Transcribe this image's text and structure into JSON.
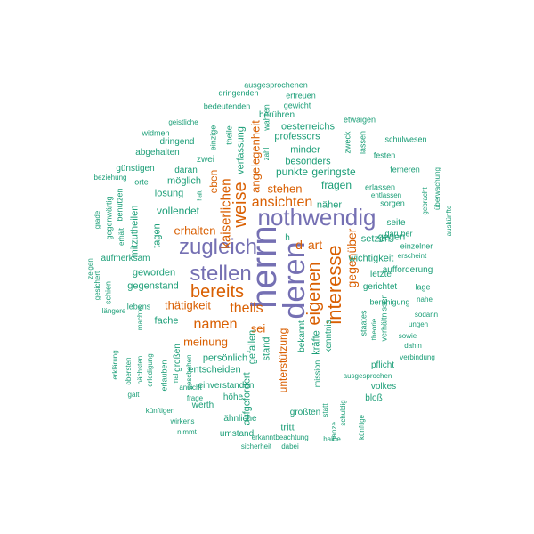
{
  "palette": {
    "teal": "#1b9e77",
    "orange": "#d95f02",
    "purple": "#7570b3"
  },
  "words": [
    {
      "text": "herrn",
      "color": "purple"
    },
    {
      "text": "deren",
      "color": "purple"
    },
    {
      "text": "nothwendig",
      "color": "purple"
    },
    {
      "text": "zugleich",
      "color": "purple"
    },
    {
      "text": "stellen",
      "color": "purple"
    },
    {
      "text": "interesse",
      "color": "orange"
    },
    {
      "text": "eigenen",
      "color": "orange"
    },
    {
      "text": "bereits",
      "color": "orange"
    },
    {
      "text": "weise",
      "color": "orange"
    },
    {
      "text": "kaiserlichen",
      "color": "orange"
    },
    {
      "text": "ansichten",
      "color": "orange"
    },
    {
      "text": "theils",
      "color": "orange"
    },
    {
      "text": "namen",
      "color": "orange"
    },
    {
      "text": "gegenüber",
      "color": "orange"
    },
    {
      "text": "d",
      "color": "orange"
    },
    {
      "text": "art",
      "color": "orange"
    },
    {
      "text": "stehen",
      "color": "orange"
    },
    {
      "text": "erhalten",
      "color": "orange"
    },
    {
      "text": "thätigkeit",
      "color": "orange"
    },
    {
      "text": "sei",
      "color": "orange"
    },
    {
      "text": "meinung",
      "color": "orange"
    },
    {
      "text": "angelegenheit",
      "color": "orange"
    },
    {
      "text": "eben",
      "color": "orange"
    },
    {
      "text": "unterstützung",
      "color": "orange"
    },
    {
      "text": "ausgesprochenen",
      "color": "teal"
    },
    {
      "text": "dringenden",
      "color": "teal"
    },
    {
      "text": "erfreuen",
      "color": "teal"
    },
    {
      "text": "bedeutenden",
      "color": "teal"
    },
    {
      "text": "gewicht",
      "color": "teal"
    },
    {
      "text": "wahren",
      "color": "teal"
    },
    {
      "text": "berühren",
      "color": "teal"
    },
    {
      "text": "etwaigen",
      "color": "teal"
    },
    {
      "text": "geistliche",
      "color": "teal"
    },
    {
      "text": "oesterreichs",
      "color": "teal"
    },
    {
      "text": "widmen",
      "color": "teal"
    },
    {
      "text": "theile",
      "color": "teal"
    },
    {
      "text": "einzige",
      "color": "teal"
    },
    {
      "text": "professors",
      "color": "teal"
    },
    {
      "text": "zweck",
      "color": "teal"
    },
    {
      "text": "lassen",
      "color": "teal"
    },
    {
      "text": "festen",
      "color": "teal"
    },
    {
      "text": "dringend",
      "color": "teal"
    },
    {
      "text": "verfassung",
      "color": "teal"
    },
    {
      "text": "zahl",
      "color": "teal"
    },
    {
      "text": "minder",
      "color": "teal"
    },
    {
      "text": "schulwesen",
      "color": "teal"
    },
    {
      "text": "abgehalten",
      "color": "teal"
    },
    {
      "text": "zwei",
      "color": "teal"
    },
    {
      "text": "besonders",
      "color": "teal"
    },
    {
      "text": "ferneren",
      "color": "teal"
    },
    {
      "text": "günstigen",
      "color": "teal"
    },
    {
      "text": "daran",
      "color": "teal"
    },
    {
      "text": "punkte",
      "color": "teal"
    },
    {
      "text": "geringste",
      "color": "teal"
    },
    {
      "text": "beziehung",
      "color": "teal"
    },
    {
      "text": "orte",
      "color": "teal"
    },
    {
      "text": "möglich",
      "color": "teal"
    },
    {
      "text": "überwachung",
      "color": "teal"
    },
    {
      "text": "gebracht",
      "color": "teal"
    },
    {
      "text": "halt",
      "color": "teal"
    },
    {
      "text": "fragen",
      "color": "teal"
    },
    {
      "text": "erlassen",
      "color": "teal"
    },
    {
      "text": "lösung",
      "color": "teal"
    },
    {
      "text": "entlassen",
      "color": "teal"
    },
    {
      "text": "benutzen",
      "color": "teal"
    },
    {
      "text": "sorgen",
      "color": "teal"
    },
    {
      "text": "grade",
      "color": "teal"
    },
    {
      "text": "näher",
      "color": "teal"
    },
    {
      "text": "vollendet",
      "color": "teal"
    },
    {
      "text": "gegenwärtig",
      "color": "teal"
    },
    {
      "text": "mitzutheilen",
      "color": "teal"
    },
    {
      "text": "seite",
      "color": "teal"
    },
    {
      "text": "auskünfte",
      "color": "teal"
    },
    {
      "text": "gegen",
      "color": "teal"
    },
    {
      "text": "darüber",
      "color": "teal"
    },
    {
      "text": "erhält",
      "color": "teal"
    },
    {
      "text": "h",
      "color": "teal"
    },
    {
      "text": "setzen",
      "color": "teal"
    },
    {
      "text": "tagen",
      "color": "teal"
    },
    {
      "text": "einzelner",
      "color": "teal"
    },
    {
      "text": "aufmerksam",
      "color": "teal"
    },
    {
      "text": "wichtigkeit",
      "color": "teal"
    },
    {
      "text": "erscheint",
      "color": "teal"
    },
    {
      "text": "zeigen",
      "color": "teal"
    },
    {
      "text": "geworden",
      "color": "teal"
    },
    {
      "text": "letzte",
      "color": "teal"
    },
    {
      "text": "aufforderung",
      "color": "teal"
    },
    {
      "text": "gesichert",
      "color": "teal"
    },
    {
      "text": "schien",
      "color": "teal"
    },
    {
      "text": "gegenstand",
      "color": "teal"
    },
    {
      "text": "gerichtet",
      "color": "teal"
    },
    {
      "text": "lage",
      "color": "teal"
    },
    {
      "text": "beruhigung",
      "color": "teal"
    },
    {
      "text": "lebens",
      "color": "teal"
    },
    {
      "text": "nahe",
      "color": "teal"
    },
    {
      "text": "sodann",
      "color": "teal"
    },
    {
      "text": "längere",
      "color": "teal"
    },
    {
      "text": "machte",
      "color": "teal"
    },
    {
      "text": "fache",
      "color": "teal"
    },
    {
      "text": "staates",
      "color": "teal"
    },
    {
      "text": "verhältnissen",
      "color": "teal"
    },
    {
      "text": "ungen",
      "color": "teal"
    },
    {
      "text": "theorie",
      "color": "teal"
    },
    {
      "text": "sowie",
      "color": "teal"
    },
    {
      "text": "kräfte",
      "color": "teal"
    },
    {
      "text": "bekannt",
      "color": "teal"
    },
    {
      "text": "kenntnis",
      "color": "teal"
    },
    {
      "text": "dahin",
      "color": "teal"
    },
    {
      "text": "gefallen",
      "color": "teal"
    },
    {
      "text": "stand",
      "color": "teal"
    },
    {
      "text": "verbindung",
      "color": "teal"
    },
    {
      "text": "persönlich",
      "color": "teal"
    },
    {
      "text": "größen",
      "color": "teal"
    },
    {
      "text": "pflicht",
      "color": "teal"
    },
    {
      "text": "entscheiden",
      "color": "teal"
    },
    {
      "text": "erklärung",
      "color": "teal"
    },
    {
      "text": "obersten",
      "color": "teal"
    },
    {
      "text": "nächsten",
      "color": "teal"
    },
    {
      "text": "erledigung",
      "color": "teal"
    },
    {
      "text": "erlauben",
      "color": "teal"
    },
    {
      "text": "geschehen",
      "color": "teal"
    },
    {
      "text": "mal",
      "color": "teal"
    },
    {
      "text": "mission",
      "color": "teal"
    },
    {
      "text": "ausgesprochen",
      "color": "teal"
    },
    {
      "text": "volkes",
      "color": "teal"
    },
    {
      "text": "einverstanden",
      "color": "teal"
    },
    {
      "text": "ansicht",
      "color": "teal"
    },
    {
      "text": "galt",
      "color": "teal"
    },
    {
      "text": "aufgefordert",
      "color": "teal"
    },
    {
      "text": "frage",
      "color": "teal"
    },
    {
      "text": "höhe",
      "color": "teal"
    },
    {
      "text": "werth",
      "color": "teal"
    },
    {
      "text": "schuldig",
      "color": "teal"
    },
    {
      "text": "statt",
      "color": "teal"
    },
    {
      "text": "bloß",
      "color": "teal"
    },
    {
      "text": "künftigen",
      "color": "teal"
    },
    {
      "text": "wirkens",
      "color": "teal"
    },
    {
      "text": "ähnliche",
      "color": "teal"
    },
    {
      "text": "größten",
      "color": "teal"
    },
    {
      "text": "ganze",
      "color": "teal"
    },
    {
      "text": "nimmt",
      "color": "teal"
    },
    {
      "text": "erkannt",
      "color": "teal"
    },
    {
      "text": "tritt",
      "color": "teal"
    },
    {
      "text": "umstand",
      "color": "teal"
    },
    {
      "text": "beachtung",
      "color": "teal"
    },
    {
      "text": "halbe",
      "color": "teal"
    },
    {
      "text": "künftige",
      "color": "teal"
    },
    {
      "text": "sicherheit",
      "color": "teal"
    },
    {
      "text": "dabei",
      "color": "teal"
    },
    {
      "text": "vereinigen",
      "color": "teal"
    }
  ]
}
